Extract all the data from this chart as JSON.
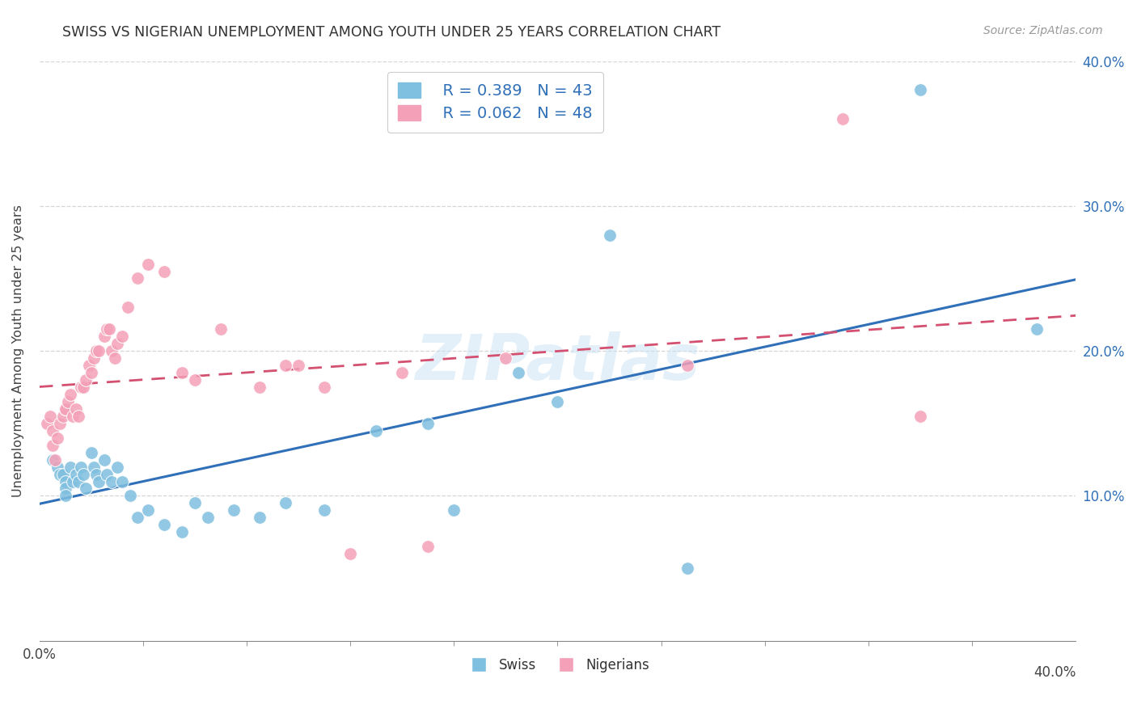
{
  "title": "SWISS VS NIGERIAN UNEMPLOYMENT AMONG YOUTH UNDER 25 YEARS CORRELATION CHART",
  "source": "Source: ZipAtlas.com",
  "ylabel": "Unemployment Among Youth under 25 years",
  "xlim": [
    0.0,
    0.4
  ],
  "ylim": [
    0.0,
    0.4
  ],
  "yticks": [
    0.0,
    0.1,
    0.2,
    0.3,
    0.4
  ],
  "ytick_labels_right": [
    "",
    "10.0%",
    "20.0%",
    "30.0%",
    "40.0%"
  ],
  "xtick_left_label": "0.0%",
  "xtick_right_label": "40.0%",
  "watermark": "ZIPatlas",
  "legend_swiss_r": "R = 0.389",
  "legend_swiss_n": "N = 43",
  "legend_nigerian_r": "R = 0.062",
  "legend_nigerian_n": "N = 48",
  "swiss_color": "#7fbfdf",
  "nigerian_color": "#f4a0b8",
  "swiss_line_color": "#3070b8",
  "nigerian_line_color": "#d45070",
  "background_color": "#ffffff",
  "grid_color": "#cccccc",
  "title_color": "#333333",
  "source_color": "#999999",
  "right_tick_color": "#3070b8",
  "swiss_x": [
    0.005,
    0.007,
    0.008,
    0.009,
    0.01,
    0.01,
    0.01,
    0.012,
    0.013,
    0.014,
    0.015,
    0.016,
    0.017,
    0.018,
    0.02,
    0.021,
    0.022,
    0.023,
    0.025,
    0.026,
    0.028,
    0.03,
    0.032,
    0.035,
    0.038,
    0.042,
    0.048,
    0.055,
    0.06,
    0.065,
    0.075,
    0.085,
    0.095,
    0.11,
    0.13,
    0.15,
    0.16,
    0.185,
    0.2,
    0.22,
    0.25,
    0.34,
    0.385
  ],
  "swiss_y": [
    0.125,
    0.12,
    0.115,
    0.115,
    0.11,
    0.105,
    0.1,
    0.12,
    0.11,
    0.115,
    0.11,
    0.12,
    0.115,
    0.105,
    0.13,
    0.12,
    0.115,
    0.11,
    0.125,
    0.115,
    0.11,
    0.12,
    0.11,
    0.1,
    0.085,
    0.09,
    0.08,
    0.075,
    0.095,
    0.085,
    0.09,
    0.085,
    0.095,
    0.09,
    0.145,
    0.15,
    0.09,
    0.185,
    0.165,
    0.28,
    0.05,
    0.38,
    0.215
  ],
  "nigerian_x": [
    0.003,
    0.004,
    0.005,
    0.005,
    0.006,
    0.007,
    0.008,
    0.009,
    0.01,
    0.01,
    0.011,
    0.012,
    0.013,
    0.014,
    0.015,
    0.016,
    0.017,
    0.018,
    0.019,
    0.02,
    0.021,
    0.022,
    0.023,
    0.025,
    0.026,
    0.027,
    0.028,
    0.029,
    0.03,
    0.032,
    0.034,
    0.038,
    0.042,
    0.048,
    0.055,
    0.06,
    0.07,
    0.085,
    0.095,
    0.1,
    0.11,
    0.12,
    0.14,
    0.15,
    0.18,
    0.25,
    0.31,
    0.34
  ],
  "nigerian_y": [
    0.15,
    0.155,
    0.145,
    0.135,
    0.125,
    0.14,
    0.15,
    0.155,
    0.16,
    0.16,
    0.165,
    0.17,
    0.155,
    0.16,
    0.155,
    0.175,
    0.175,
    0.18,
    0.19,
    0.185,
    0.195,
    0.2,
    0.2,
    0.21,
    0.215,
    0.215,
    0.2,
    0.195,
    0.205,
    0.21,
    0.23,
    0.25,
    0.26,
    0.255,
    0.185,
    0.18,
    0.215,
    0.175,
    0.19,
    0.19,
    0.175,
    0.06,
    0.185,
    0.065,
    0.195,
    0.19,
    0.36,
    0.155
  ]
}
